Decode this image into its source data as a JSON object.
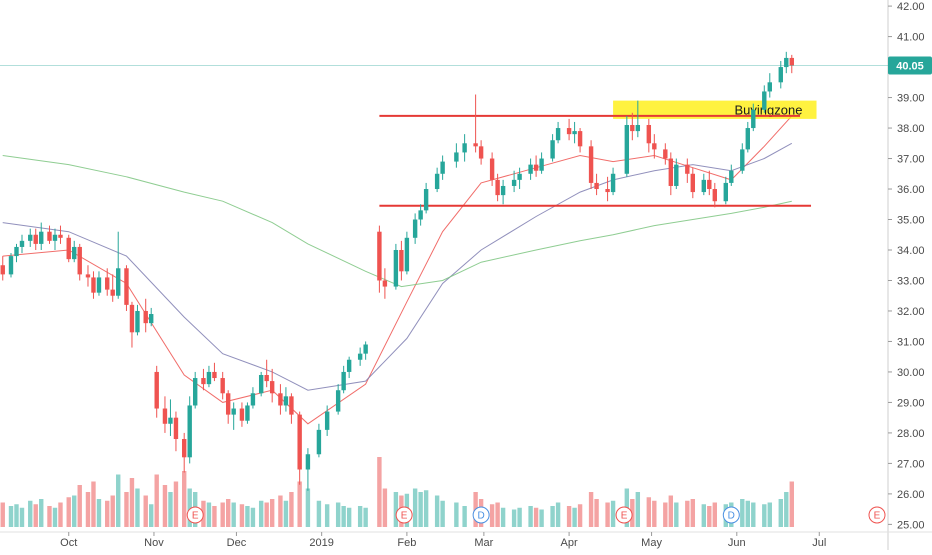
{
  "chart_data": {
    "type": "candlestick",
    "x_axis": {
      "labels": [
        {
          "label": "Oct",
          "date": "2018-10-01"
        },
        {
          "label": "Nov",
          "date": "2018-11-01"
        },
        {
          "label": "Dec",
          "date": "2018-12-01"
        },
        {
          "label": "2019",
          "date": "2019-01-01"
        },
        {
          "label": "Feb",
          "date": "2019-02-01"
        },
        {
          "label": "Mar",
          "date": "2019-03-01"
        },
        {
          "label": "Apr",
          "date": "2019-04-01"
        },
        {
          "label": "May",
          "date": "2019-05-01"
        },
        {
          "label": "Jun",
          "date": "2019-06-01"
        },
        {
          "label": "Jul",
          "date": "2019-07-01"
        }
      ],
      "range": [
        "2018-09-06",
        "2019-07-26"
      ]
    },
    "y_axis": {
      "ticks": [
        "25.00",
        "26.00",
        "27.00",
        "28.00",
        "29.00",
        "30.00",
        "31.00",
        "32.00",
        "33.00",
        "34.00",
        "35.00",
        "36.00",
        "37.00",
        "38.00",
        "39.00",
        "40.00",
        "41.00",
        "42.00"
      ],
      "range": [
        24.75,
        42.2
      ]
    },
    "last_price": {
      "label": "40.05",
      "value": 40.05,
      "color": "#26a69a"
    },
    "colors": {
      "up": "#26a69a",
      "down": "#ef5350",
      "vol_up": "#8fd3cc",
      "vol_down": "#f4a3a3",
      "ma_fast": "#ef5350",
      "ma_mid": "#7e7cb0",
      "ma_slow": "#7bc47f",
      "trendline": "#e53935",
      "zone": "#ffee00"
    },
    "prices_key": [
      "date",
      "open",
      "high",
      "low",
      "close",
      "volume"
    ],
    "prices": [
      [
        "2018-09-07",
        33.5,
        33.8,
        33.0,
        33.2,
        14
      ],
      [
        "2018-09-10",
        33.2,
        33.9,
        33.1,
        33.8,
        12
      ],
      [
        "2018-09-12",
        33.8,
        34.2,
        33.6,
        34.1,
        13
      ],
      [
        "2018-09-14",
        34.1,
        34.5,
        33.9,
        34.3,
        11
      ],
      [
        "2018-09-17",
        34.3,
        34.7,
        34.1,
        34.5,
        15
      ],
      [
        "2018-09-19",
        34.5,
        34.7,
        34.0,
        34.2,
        13
      ],
      [
        "2018-09-21",
        34.2,
        34.9,
        34.0,
        34.6,
        16
      ],
      [
        "2018-09-24",
        34.6,
        34.8,
        34.2,
        34.3,
        12
      ],
      [
        "2018-09-26",
        34.3,
        34.7,
        34.0,
        34.5,
        11
      ],
      [
        "2018-09-28",
        34.5,
        34.8,
        34.2,
        34.4,
        14
      ],
      [
        "2018-10-01",
        34.4,
        34.5,
        33.6,
        33.7,
        17
      ],
      [
        "2018-10-03",
        33.7,
        34.3,
        33.6,
        34.1,
        18
      ],
      [
        "2018-10-05",
        34.1,
        34.2,
        33.0,
        33.2,
        24
      ],
      [
        "2018-10-08",
        33.2,
        33.5,
        32.8,
        33.1,
        20
      ],
      [
        "2018-10-10",
        33.1,
        33.3,
        32.4,
        32.6,
        26
      ],
      [
        "2018-10-12",
        32.6,
        33.3,
        32.5,
        33.1,
        16
      ],
      [
        "2018-10-15",
        33.1,
        33.4,
        32.5,
        32.7,
        15
      ],
      [
        "2018-10-17",
        32.7,
        33.2,
        32.3,
        32.5,
        18
      ],
      [
        "2018-10-19",
        32.5,
        34.6,
        32.4,
        33.4,
        30
      ],
      [
        "2018-10-22",
        33.4,
        33.5,
        32.0,
        32.2,
        20
      ],
      [
        "2018-10-24",
        32.2,
        32.3,
        30.8,
        31.3,
        28
      ],
      [
        "2018-10-26",
        31.3,
        32.2,
        31.2,
        32.0,
        22
      ],
      [
        "2018-10-29",
        32.0,
        32.4,
        31.3,
        31.6,
        18
      ],
      [
        "2018-10-31",
        31.6,
        32.1,
        31.5,
        31.9,
        13
      ],
      [
        "2018-11-02",
        30.0,
        30.2,
        28.5,
        28.8,
        30
      ],
      [
        "2018-11-05",
        28.8,
        29.2,
        28.0,
        28.3,
        24
      ],
      [
        "2018-11-07",
        28.3,
        29.1,
        27.9,
        28.5,
        20
      ],
      [
        "2018-11-09",
        28.5,
        28.7,
        27.4,
        27.8,
        26
      ],
      [
        "2018-11-12",
        27.8,
        28.0,
        26.7,
        27.2,
        32
      ],
      [
        "2018-11-14",
        27.2,
        29.2,
        27.0,
        28.9,
        22
      ],
      [
        "2018-11-16",
        28.9,
        30.0,
        28.8,
        29.8,
        20
      ],
      [
        "2018-11-19",
        29.8,
        30.1,
        29.4,
        29.6,
        15
      ],
      [
        "2018-11-21",
        29.6,
        30.2,
        29.5,
        30.0,
        14
      ],
      [
        "2018-11-23",
        30.0,
        30.3,
        29.7,
        29.8,
        12
      ],
      [
        "2018-11-26",
        29.8,
        30.0,
        29.1,
        29.3,
        14
      ],
      [
        "2018-11-28",
        29.3,
        29.4,
        28.3,
        28.6,
        16
      ],
      [
        "2018-11-30",
        28.6,
        29.0,
        28.1,
        28.8,
        14
      ],
      [
        "2018-12-03",
        28.8,
        29.0,
        28.2,
        28.4,
        13
      ],
      [
        "2018-12-05",
        28.4,
        29.0,
        28.3,
        28.9,
        12
      ],
      [
        "2018-12-07",
        28.9,
        29.5,
        28.8,
        29.3,
        11
      ],
      [
        "2018-12-10",
        29.3,
        30.0,
        29.2,
        29.9,
        15
      ],
      [
        "2018-12-12",
        29.9,
        30.4,
        29.5,
        29.7,
        14
      ],
      [
        "2018-12-14",
        29.7,
        30.1,
        29.0,
        29.3,
        16
      ],
      [
        "2018-12-17",
        29.3,
        29.6,
        28.6,
        28.9,
        18
      ],
      [
        "2018-12-19",
        28.9,
        29.5,
        28.7,
        29.2,
        15
      ],
      [
        "2018-12-21",
        29.2,
        29.3,
        28.3,
        28.6,
        20
      ],
      [
        "2018-12-24",
        28.6,
        28.7,
        26.3,
        26.8,
        26
      ],
      [
        "2018-12-27",
        26.8,
        27.5,
        26.1,
        27.3,
        22
      ],
      [
        "2018-12-31",
        27.3,
        28.3,
        27.2,
        28.1,
        15
      ],
      [
        "2019-01-03",
        28.1,
        28.9,
        27.9,
        28.7,
        13
      ],
      [
        "2019-01-07",
        28.7,
        29.6,
        28.6,
        29.4,
        14
      ],
      [
        "2019-01-09",
        29.4,
        30.2,
        29.3,
        30.0,
        12
      ],
      [
        "2019-01-11",
        30.0,
        30.5,
        29.8,
        30.4,
        11
      ],
      [
        "2019-01-15",
        30.4,
        30.8,
        30.2,
        30.6,
        12
      ],
      [
        "2019-01-17",
        30.6,
        31.0,
        30.4,
        30.9,
        11
      ],
      [
        "2019-01-22",
        34.6,
        34.8,
        32.6,
        33.0,
        40
      ],
      [
        "2019-01-24",
        33.0,
        33.4,
        32.4,
        32.8,
        22
      ],
      [
        "2019-01-28",
        32.8,
        34.2,
        32.7,
        34.0,
        20
      ],
      [
        "2019-01-30",
        34.0,
        34.3,
        33.0,
        33.3,
        18
      ],
      [
        "2019-02-01",
        33.3,
        34.6,
        33.2,
        34.4,
        19
      ],
      [
        "2019-02-04",
        34.4,
        35.2,
        34.2,
        35.0,
        22
      ],
      [
        "2019-02-06",
        35.0,
        35.5,
        34.8,
        35.3,
        20
      ],
      [
        "2019-02-08",
        35.3,
        36.2,
        35.2,
        36.0,
        21
      ],
      [
        "2019-02-12",
        36.0,
        36.7,
        35.9,
        36.5,
        18
      ],
      [
        "2019-02-14",
        36.5,
        37.1,
        36.3,
        36.9,
        15
      ],
      [
        "2019-02-19",
        36.9,
        37.5,
        36.7,
        37.2,
        14
      ],
      [
        "2019-02-22",
        37.2,
        37.8,
        36.9,
        37.5,
        12
      ],
      [
        "2019-02-26",
        37.5,
        39.1,
        37.2,
        37.4,
        20
      ],
      [
        "2019-02-28",
        37.4,
        37.6,
        36.8,
        37.0,
        16
      ],
      [
        "2019-03-04",
        37.0,
        37.2,
        36.1,
        36.3,
        13
      ],
      [
        "2019-03-06",
        36.3,
        36.5,
        35.6,
        35.8,
        14
      ],
      [
        "2019-03-08",
        35.8,
        36.3,
        35.5,
        36.1,
        11
      ],
      [
        "2019-03-12",
        36.1,
        36.6,
        35.9,
        36.3,
        10
      ],
      [
        "2019-03-14",
        36.3,
        36.7,
        36.0,
        36.5,
        11
      ],
      [
        "2019-03-18",
        36.5,
        37.0,
        36.3,
        36.8,
        12
      ],
      [
        "2019-03-20",
        36.8,
        37.1,
        36.4,
        36.6,
        11
      ],
      [
        "2019-03-22",
        36.6,
        37.2,
        36.5,
        37.0,
        10
      ],
      [
        "2019-03-26",
        37.0,
        37.8,
        36.9,
        37.6,
        12
      ],
      [
        "2019-03-28",
        37.6,
        38.2,
        37.5,
        38.0,
        14
      ],
      [
        "2019-04-01",
        38.0,
        38.3,
        37.6,
        37.8,
        12
      ],
      [
        "2019-04-03",
        37.8,
        38.2,
        37.5,
        37.9,
        11
      ],
      [
        "2019-04-05",
        37.9,
        38.0,
        37.2,
        37.4,
        13
      ],
      [
        "2019-04-09",
        37.4,
        37.6,
        36.0,
        36.2,
        20
      ],
      [
        "2019-04-11",
        36.2,
        36.5,
        35.8,
        36.0,
        16
      ],
      [
        "2019-04-15",
        36.0,
        36.4,
        35.6,
        35.9,
        14
      ],
      [
        "2019-04-17",
        35.9,
        36.7,
        35.8,
        36.5,
        15
      ],
      [
        "2019-04-22",
        36.5,
        38.4,
        36.4,
        38.1,
        22
      ],
      [
        "2019-04-24",
        38.1,
        38.5,
        37.6,
        37.9,
        16
      ],
      [
        "2019-04-26",
        37.9,
        38.9,
        37.7,
        38.1,
        20
      ],
      [
        "2019-04-30",
        38.1,
        38.3,
        37.2,
        37.5,
        17
      ],
      [
        "2019-05-02",
        37.5,
        37.8,
        37.0,
        37.3,
        15
      ],
      [
        "2019-05-06",
        37.3,
        37.5,
        36.8,
        37.0,
        14
      ],
      [
        "2019-05-08",
        37.0,
        37.2,
        35.8,
        36.1,
        18
      ],
      [
        "2019-05-10",
        36.1,
        37.0,
        36.0,
        36.8,
        14
      ],
      [
        "2019-05-14",
        36.8,
        37.0,
        36.2,
        36.5,
        15
      ],
      [
        "2019-05-16",
        36.5,
        36.7,
        35.7,
        35.9,
        16
      ],
      [
        "2019-05-20",
        35.9,
        36.5,
        35.8,
        36.3,
        13
      ],
      [
        "2019-05-22",
        36.3,
        36.6,
        35.8,
        36.0,
        12
      ],
      [
        "2019-05-24",
        36.0,
        36.2,
        35.4,
        35.6,
        14
      ],
      [
        "2019-05-28",
        35.6,
        36.4,
        35.5,
        36.2,
        13
      ],
      [
        "2019-05-30",
        36.2,
        36.8,
        36.1,
        36.6,
        14
      ],
      [
        "2019-06-03",
        36.6,
        37.5,
        36.5,
        37.3,
        16
      ],
      [
        "2019-06-05",
        37.3,
        38.2,
        37.2,
        38.0,
        15
      ],
      [
        "2019-06-07",
        38.0,
        38.8,
        37.9,
        38.6,
        14
      ],
      [
        "2019-06-11",
        38.6,
        39.4,
        38.5,
        39.2,
        13
      ],
      [
        "2019-06-13",
        39.2,
        39.8,
        39.0,
        39.5,
        14
      ],
      [
        "2019-06-17",
        39.5,
        40.2,
        39.3,
        40.0,
        16
      ],
      [
        "2019-06-19",
        40.0,
        40.5,
        39.8,
        40.3,
        20
      ],
      [
        "2019-06-21",
        40.3,
        40.4,
        39.8,
        40.05,
        26
      ]
    ],
    "moving_averages": {
      "ma_fast_key": [
        "date",
        "value"
      ],
      "ma_fast": [
        [
          "2018-09-07",
          33.8
        ],
        [
          "2018-10-01",
          34.0
        ],
        [
          "2018-10-22",
          32.9
        ],
        [
          "2018-11-12",
          29.9
        ],
        [
          "2018-11-26",
          29.0
        ],
        [
          "2018-12-14",
          29.4
        ],
        [
          "2018-12-27",
          28.3
        ],
        [
          "2019-01-17",
          29.6
        ],
        [
          "2019-02-01",
          32.3
        ],
        [
          "2019-02-14",
          34.6
        ],
        [
          "2019-02-28",
          36.2
        ],
        [
          "2019-03-20",
          36.7
        ],
        [
          "2019-04-05",
          37.1
        ],
        [
          "2019-04-17",
          36.9
        ],
        [
          "2019-05-02",
          37.1
        ],
        [
          "2019-05-16",
          36.7
        ],
        [
          "2019-05-30",
          36.3
        ],
        [
          "2019-06-11",
          37.4
        ],
        [
          "2019-06-21",
          38.4
        ]
      ],
      "ma_mid": [
        [
          "2018-09-07",
          34.9
        ],
        [
          "2018-10-01",
          34.6
        ],
        [
          "2018-10-22",
          33.8
        ],
        [
          "2018-11-12",
          31.8
        ],
        [
          "2018-11-26",
          30.6
        ],
        [
          "2018-12-14",
          30.0
        ],
        [
          "2018-12-27",
          29.4
        ],
        [
          "2019-01-17",
          29.7
        ],
        [
          "2019-02-01",
          31.1
        ],
        [
          "2019-02-14",
          32.9
        ],
        [
          "2019-02-28",
          34.0
        ],
        [
          "2019-03-20",
          35.1
        ],
        [
          "2019-04-05",
          35.9
        ],
        [
          "2019-04-17",
          36.3
        ],
        [
          "2019-05-02",
          36.6
        ],
        [
          "2019-05-16",
          36.8
        ],
        [
          "2019-05-30",
          36.6
        ],
        [
          "2019-06-11",
          37.0
        ],
        [
          "2019-06-21",
          37.5
        ]
      ],
      "ma_slow": [
        [
          "2018-09-07",
          37.1
        ],
        [
          "2018-10-01",
          36.8
        ],
        [
          "2018-10-22",
          36.4
        ],
        [
          "2018-11-12",
          35.9
        ],
        [
          "2018-11-26",
          35.6
        ],
        [
          "2018-12-14",
          34.9
        ],
        [
          "2018-12-27",
          34.2
        ],
        [
          "2019-01-17",
          33.3
        ],
        [
          "2019-01-30",
          32.8
        ],
        [
          "2019-02-14",
          33.0
        ],
        [
          "2019-02-28",
          33.6
        ],
        [
          "2019-03-20",
          34.0
        ],
        [
          "2019-04-05",
          34.3
        ],
        [
          "2019-04-17",
          34.5
        ],
        [
          "2019-05-02",
          34.8
        ],
        [
          "2019-05-16",
          35.0
        ],
        [
          "2019-05-30",
          35.2
        ],
        [
          "2019-06-11",
          35.4
        ],
        [
          "2019-06-21",
          35.6
        ]
      ]
    },
    "annotations": {
      "resistance": {
        "from": "2019-01-22",
        "to": "2019-06-24",
        "value": 38.4
      },
      "support": {
        "from": "2019-01-22",
        "to": "2019-06-28",
        "value": 35.45
      },
      "zone": {
        "label": "Buyingzone",
        "from": "2019-04-17",
        "to": "2019-06-30",
        "low": 38.3,
        "high": 38.9
      }
    },
    "event_markers": [
      {
        "label": "E",
        "date": "2018-11-16",
        "color": "#ef5350"
      },
      {
        "label": "E",
        "date": "2019-01-31",
        "color": "#ef5350"
      },
      {
        "label": "D",
        "date": "2019-02-28",
        "color": "#4a90e2"
      },
      {
        "label": "E",
        "date": "2019-04-21",
        "color": "#ef5350"
      },
      {
        "label": "D",
        "date": "2019-05-30",
        "color": "#4a90e2"
      },
      {
        "label": "E",
        "date": "2019-07-22",
        "color": "#ef5350"
      }
    ]
  }
}
